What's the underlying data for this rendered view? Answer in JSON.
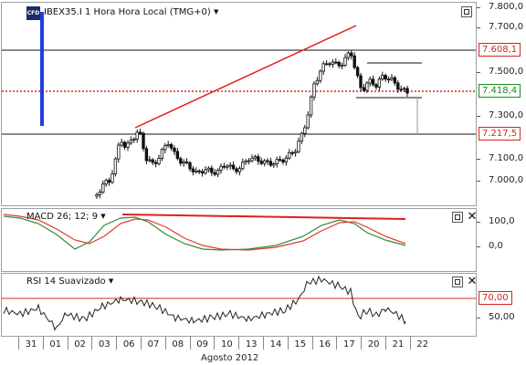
{
  "main": {
    "instrument_title": "IBEX35.I 1 Hora Hora Local (TMG+0)",
    "logo_text": "CFD",
    "axis_ticks": [
      "7.800,0",
      "7.700,0",
      "7.600,0",
      "7.500,0",
      "7.400,0",
      "7.300,0",
      "7.200,0",
      "7.100,0",
      "7.000,0"
    ],
    "price_tags": [
      {
        "label": "7.608,1",
        "color": "#d0281c"
      },
      {
        "label": "7.418,4",
        "color": "#1a8a1a"
      },
      {
        "label": "7.217,5",
        "color": "#d0281c"
      }
    ],
    "colors": {
      "candle": "#111111",
      "trendline": "#e0201c",
      "dotted_level": "#d0281c",
      "vertical_marker": "#1f3fd8"
    }
  },
  "macd": {
    "title": "MACD 26; 12; 9",
    "axis_ticks": [
      "100,0",
      "0,0"
    ],
    "colors": {
      "macd": "#2f8a3f",
      "signal": "#e03a2a",
      "divergence_line": "#e0201c"
    }
  },
  "rsi": {
    "title": "RSI 14 Suavizado",
    "axis_ticks": [
      "50,00"
    ],
    "level_tag": {
      "label": "70,00",
      "color": "#d0281c"
    },
    "colors": {
      "rsi": "#222222",
      "level": "#d0281c"
    }
  },
  "time_axis": {
    "days": [
      "31",
      "01",
      "02",
      "03",
      "06",
      "07",
      "08",
      "09",
      "10",
      "13",
      "14",
      "15",
      "16",
      "17",
      "20",
      "21",
      "22"
    ],
    "month_label": "Agosto 2012"
  }
}
